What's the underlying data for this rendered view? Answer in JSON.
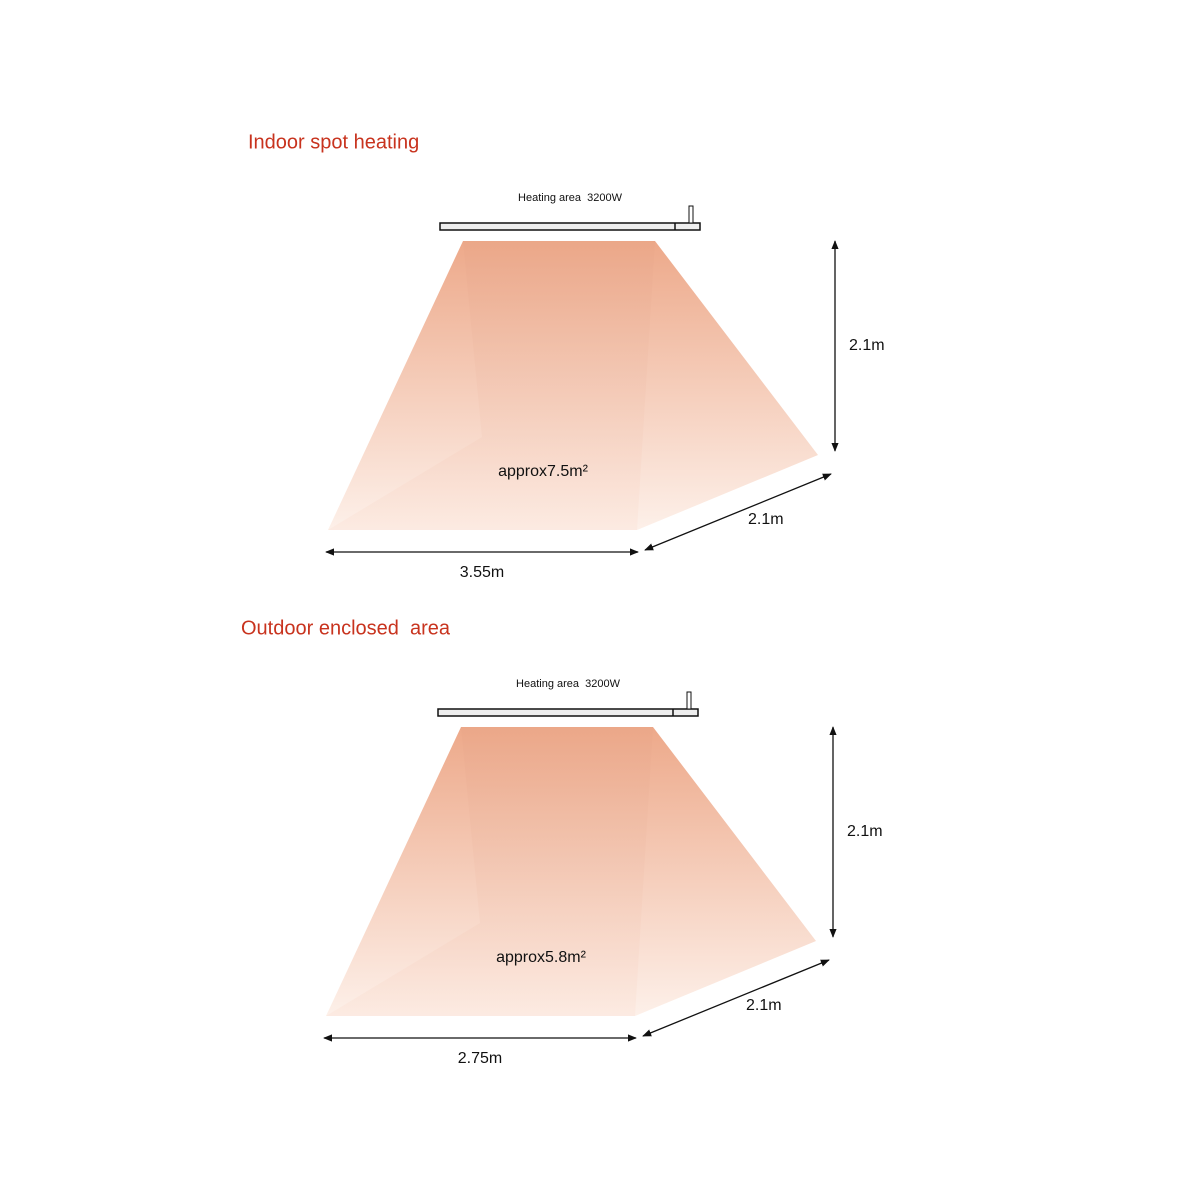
{
  "sections": [
    {
      "title": "Indoor spot heating",
      "heater_label": "Heating area  3200W",
      "height": "2.1m",
      "depth": "2.1m",
      "width": "3.55m",
      "area": "approx7.5m²"
    },
    {
      "title": "Outdoor enclosed  area",
      "heater_label": "Heating area  3200W",
      "height": "2.1m",
      "depth": "2.1m",
      "width": "2.75m",
      "area": "approx5.8m²"
    }
  ]
}
